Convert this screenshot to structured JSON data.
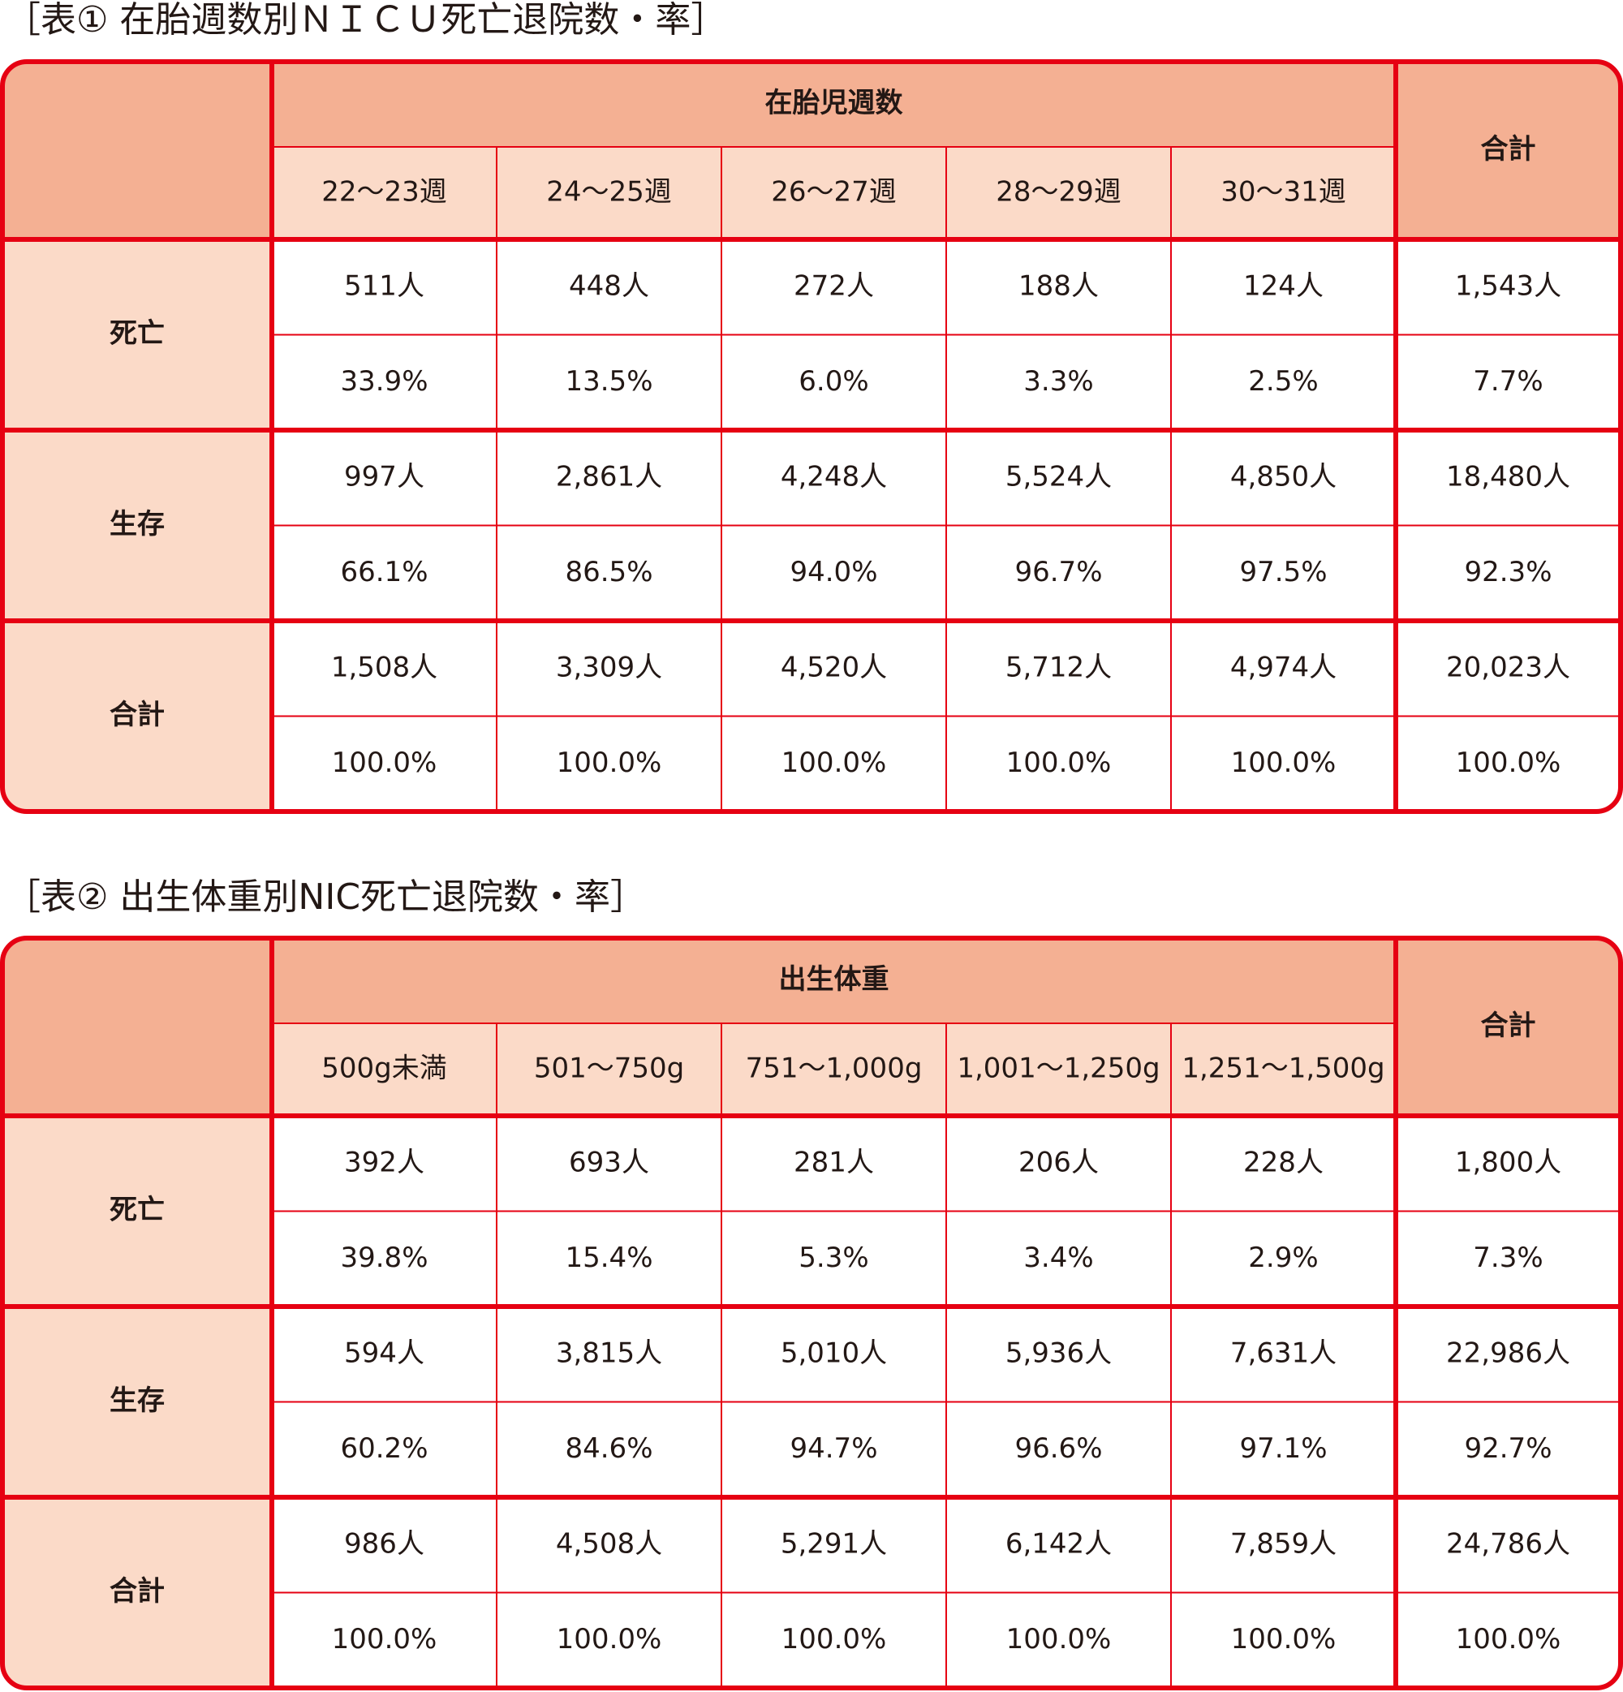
{
  "tables": [
    {
      "title": "［表① 在胎週数別ＮＩＣＵ死亡退院数・率］",
      "group_header": "在胎児週数",
      "total_header": "合計",
      "columns": [
        "22～23週",
        "24～25週",
        "26～27週",
        "28～29週",
        "30～31週"
      ],
      "rows": [
        {
          "label": "死亡",
          "counts": [
            "511人",
            "448人",
            "272人",
            "188人",
            "124人",
            "1,543人"
          ],
          "rates": [
            "33.9%",
            "13.5%",
            "6.0%",
            "3.3%",
            "2.5%",
            "7.7%"
          ]
        },
        {
          "label": "生存",
          "counts": [
            "997人",
            "2,861人",
            "4,248人",
            "5,524人",
            "4,850人",
            "18,480人"
          ],
          "rates": [
            "66.1%",
            "86.5%",
            "94.0%",
            "96.7%",
            "97.5%",
            "92.3%"
          ]
        },
        {
          "label": "合計",
          "counts": [
            "1,508人",
            "3,309人",
            "4,520人",
            "5,712人",
            "4,974人",
            "20,023人"
          ],
          "rates": [
            "100.0%",
            "100.0%",
            "100.0%",
            "100.0%",
            "100.0%",
            "100.0%"
          ]
        }
      ]
    },
    {
      "title": "［表② 出生体重別NIC死亡退院数・率］",
      "group_header": "出生体重",
      "total_header": "合計",
      "columns": [
        "500g未満",
        "501～750g",
        "751～1,000g",
        "1,001～1,250g",
        "1,251～1,500g"
      ],
      "rows": [
        {
          "label": "死亡",
          "counts": [
            "392人",
            "693人",
            "281人",
            "206人",
            "228人",
            "1,800人"
          ],
          "rates": [
            "39.8%",
            "15.4%",
            "5.3%",
            "3.4%",
            "2.9%",
            "7.3%"
          ]
        },
        {
          "label": "生存",
          "counts": [
            "594人",
            "3,815人",
            "5,010人",
            "5,936人",
            "7,631人",
            "22,986人"
          ],
          "rates": [
            "60.2%",
            "84.6%",
            "94.7%",
            "96.6%",
            "97.1%",
            "92.7%"
          ]
        },
        {
          "label": "合計",
          "counts": [
            "986人",
            "4,508人",
            "5,291人",
            "6,142人",
            "7,859人",
            "24,786人"
          ],
          "rates": [
            "100.0%",
            "100.0%",
            "100.0%",
            "100.0%",
            "100.0%",
            "100.0%"
          ]
        }
      ]
    }
  ]
}
